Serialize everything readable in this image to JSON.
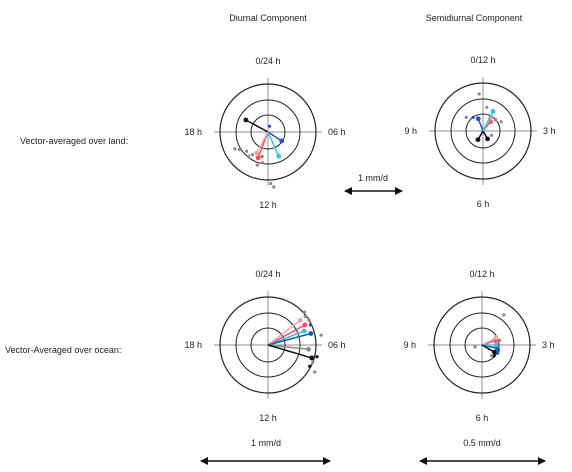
{
  "headers": {
    "diurnal": "Diurnal Component",
    "semidiurnal": "Semidiurnal Component"
  },
  "rows": {
    "land": "Vector-averaged over land:",
    "ocean": "Vector-Averaged over ocean:"
  },
  "scales": {
    "middle": "1 mm/d",
    "bottom_left": "1 mm/d",
    "bottom_right": "0.5 mm/d"
  },
  "colors": {
    "ring": "#222222",
    "grid": "#666666",
    "black": "#111111",
    "red": "#e0585a",
    "pink": "#f2a3a8",
    "blue": "#1f57b8",
    "cyan": "#36c4d8",
    "gray": "#8a8a8a"
  },
  "panels": [
    {
      "id": "land-diurnal",
      "labels": {
        "top": "0/24 h",
        "bottom": "12 h",
        "left": "18 h",
        "right": "06 h"
      },
      "vectors": [
        {
          "color": "black",
          "phase_h": 19.9,
          "amp": 1.05
        },
        {
          "color": "blue",
          "phase_h": 8.2,
          "amp": 0.68
        },
        {
          "color": "cyan",
          "phase_h": 10.4,
          "amp": 1.1
        },
        {
          "color": "red",
          "phase_h": 13.4,
          "amp": 1.15
        },
        {
          "color": "pink",
          "phase_h": 13.9,
          "amp": 1.0
        }
      ],
      "dots": [
        {
          "color": "gray",
          "phase_h": 14.6,
          "amp": 1.3
        },
        {
          "color": "gray",
          "phase_h": 14.3,
          "amp": 1.15
        },
        {
          "color": "red",
          "phase_h": 12.9,
          "amp": 1.05
        },
        {
          "color": "gray",
          "phase_h": 15.2,
          "amp": 1.2
        },
        {
          "color": "gray",
          "phase_h": 15.9,
          "amp": 1.4
        },
        {
          "color": "gray",
          "phase_h": 16.2,
          "amp": 1.55
        },
        {
          "color": "gray",
          "phase_h": 13.2,
          "amp": 1.45
        },
        {
          "color": "gray",
          "phase_h": 12.7,
          "amp": 1.3
        },
        {
          "color": "blue",
          "phase_h": 1.0,
          "amp": 0.25
        },
        {
          "color": "gray",
          "phase_h": 11.6,
          "amp": 2.3
        },
        {
          "color": "gray",
          "phase_h": 11.8,
          "amp": 2.15
        }
      ]
    },
    {
      "id": "land-semidiurnal",
      "labels": {
        "top": "0/12 h",
        "bottom": "6 h",
        "left": "9 h",
        "right": "3 h"
      },
      "vectors": [
        {
          "color": "black",
          "phase_h": 7.0,
          "amp": 0.42
        },
        {
          "color": "black",
          "phase_h": 5.0,
          "amp": 0.38
        },
        {
          "color": "red",
          "phase_h": 1.3,
          "amp": 0.5
        },
        {
          "color": "pink",
          "phase_h": 1.0,
          "amp": 0.62
        },
        {
          "color": "blue",
          "phase_h": 11.3,
          "amp": 0.55
        },
        {
          "color": "cyan",
          "phase_h": 0.9,
          "amp": 0.92
        }
      ],
      "dots": [
        {
          "color": "gray",
          "phase_h": 11.8,
          "amp": 1.55
        },
        {
          "color": "gray",
          "phase_h": 2.1,
          "amp": 0.85
        },
        {
          "color": "blue",
          "phase_h": 10.8,
          "amp": 0.7
        },
        {
          "color": "red",
          "phase_h": 1.6,
          "amp": 0.7
        },
        {
          "color": "gray",
          "phase_h": 0.3,
          "amp": 1.0
        },
        {
          "color": "gray",
          "phase_h": 3.9,
          "amp": 0.4
        },
        {
          "color": "gray",
          "phase_h": 10.3,
          "amp": 0.9
        }
      ]
    },
    {
      "id": "ocean-diurnal",
      "labels": {
        "top": "0/24 h",
        "bottom": "12 h",
        "left": "18 h",
        "right": "06 h"
      },
      "vectors": [
        {
          "color": "red",
          "phase_h": 4.1,
          "amp": 1.75
        },
        {
          "color": "pink",
          "phase_h": 3.5,
          "amp": 1.7
        },
        {
          "color": "cyan",
          "phase_h": 4.6,
          "amp": 1.62
        },
        {
          "color": "blue",
          "phase_h": 5.0,
          "amp": 1.85
        },
        {
          "color": "gray",
          "phase_h": 6.4,
          "amp": 1.7
        },
        {
          "color": "black",
          "phase_h": 7.1,
          "amp": 1.9
        }
      ],
      "dots": [
        {
          "color": "gray",
          "phase_h": 3.2,
          "amp": 2.05
        },
        {
          "color": "gray",
          "phase_h": 3.5,
          "amp": 1.95
        },
        {
          "color": "red",
          "phase_h": 3.9,
          "amp": 2.0
        },
        {
          "color": "blue",
          "phase_h": 4.3,
          "amp": 1.95
        },
        {
          "color": "gray",
          "phase_h": 5.3,
          "amp": 2.25
        },
        {
          "color": "black",
          "phase_h": 6.9,
          "amp": 2.1
        },
        {
          "color": "gray",
          "phase_h": 7.4,
          "amp": 2.0
        },
        {
          "color": "black",
          "phase_h": 7.8,
          "amp": 1.95
        },
        {
          "color": "gray",
          "phase_h": 8.0,
          "amp": 2.25
        }
      ]
    },
    {
      "id": "ocean-semidiurnal",
      "labels": {
        "top": "0/12 h",
        "bottom": "6 h",
        "left": "9 h",
        "right": "3 h"
      },
      "vectors": [
        {
          "color": "red",
          "phase_h": 2.4,
          "amp": 0.6
        },
        {
          "color": "pink",
          "phase_h": 2.1,
          "amp": 0.66
        },
        {
          "color": "blue",
          "phase_h": 3.4,
          "amp": 0.65
        },
        {
          "color": "cyan",
          "phase_h": 3.0,
          "amp": 0.6
        },
        {
          "color": "black",
          "phase_h": 4.0,
          "amp": 0.6
        }
      ],
      "dots": [
        {
          "color": "gray",
          "phase_h": 1.2,
          "amp": 1.55
        },
        {
          "color": "red",
          "phase_h": 2.5,
          "amp": 0.75
        },
        {
          "color": "blue",
          "phase_h": 3.6,
          "amp": 0.72
        },
        {
          "color": "blue",
          "phase_h": 3.9,
          "amp": 0.74
        },
        {
          "color": "black",
          "phase_h": 4.4,
          "amp": 0.68
        },
        {
          "color": "gray",
          "phase_h": 8.5,
          "amp": 0.3
        },
        {
          "color": "gray",
          "phase_h": 4.6,
          "amp": 0.6
        }
      ]
    }
  ]
}
